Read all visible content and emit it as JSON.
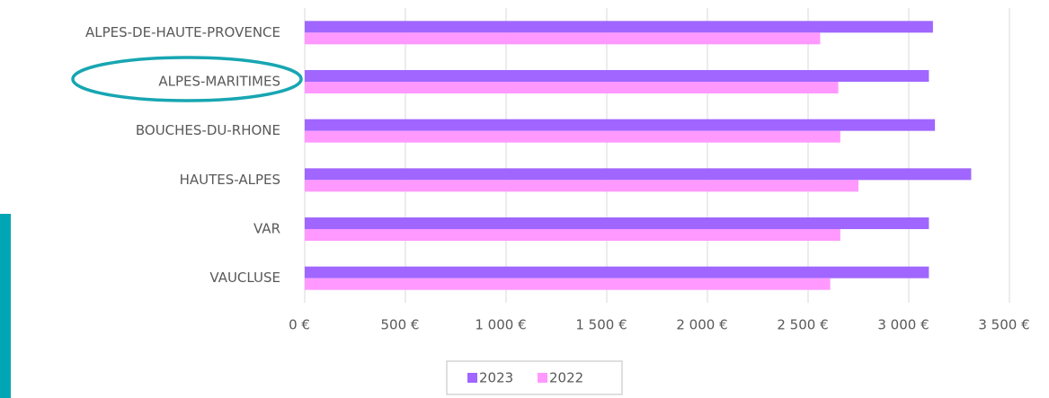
{
  "chart_data": {
    "type": "bar",
    "orientation": "horizontal",
    "categories": [
      "ALPES-DE-HAUTE-PROVENCE",
      "ALPES-MARITIMES",
      "BOUCHES-DU-RHONE",
      "HAUTES-ALPES",
      "VAR",
      "VAUCLUSE"
    ],
    "series": [
      {
        "name": "2023",
        "color": "#a066ff",
        "values": [
          3120,
          3100,
          3130,
          3310,
          3100,
          3100
        ]
      },
      {
        "name": "2022",
        "color": "#ff99ff",
        "values": [
          2560,
          2650,
          2660,
          2750,
          2660,
          2610
        ]
      }
    ],
    "xlim": [
      0,
      3500
    ],
    "xticks": [
      {
        "value": 0,
        "label": "0 €"
      },
      {
        "value": 500,
        "label": "500 €"
      },
      {
        "value": 1000,
        "label": "1 000 €"
      },
      {
        "value": 1500,
        "label": "1 500 €"
      },
      {
        "value": 2000,
        "label": "2 000 €"
      },
      {
        "value": 2500,
        "label": "2 500 €"
      },
      {
        "value": 3000,
        "label": "3 000 €"
      },
      {
        "value": 3500,
        "label": "3 500 €"
      }
    ],
    "grid": true,
    "legend": "bottom"
  }
}
